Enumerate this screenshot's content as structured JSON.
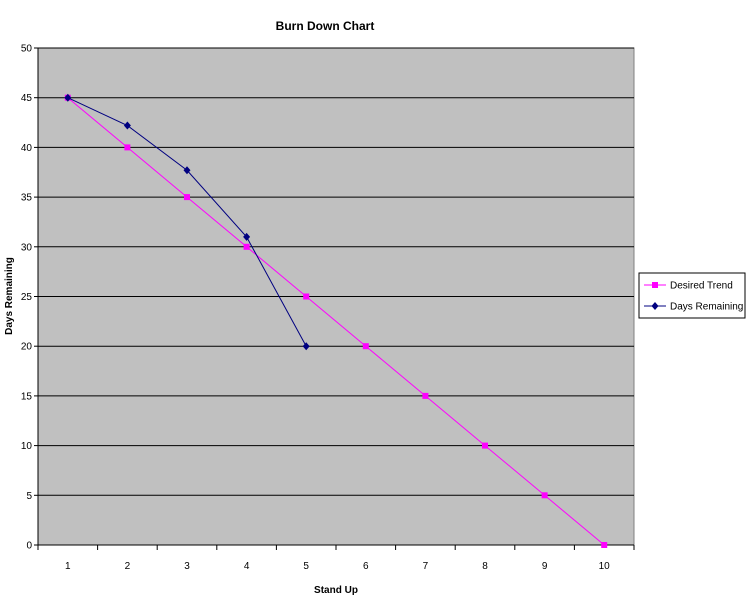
{
  "chart_data": {
    "type": "line",
    "title": "Burn Down Chart",
    "xlabel": "Stand Up",
    "ylabel": "Days Remaining",
    "x": [
      1,
      2,
      3,
      4,
      5,
      6,
      7,
      8,
      9,
      10
    ],
    "ylim": [
      0,
      50
    ],
    "yticks": [
      0,
      5,
      10,
      15,
      20,
      25,
      30,
      35,
      40,
      45,
      50
    ],
    "grid": true,
    "legend_position": "right",
    "plot_background": "#c0c0c0",
    "series": [
      {
        "name": "Desired Trend",
        "color": "#ff00ff",
        "marker": "square",
        "x": [
          1,
          2,
          3,
          4,
          5,
          6,
          7,
          8,
          9,
          10
        ],
        "y": [
          45,
          40,
          35,
          30,
          25,
          20,
          15,
          10,
          5,
          0
        ]
      },
      {
        "name": "Days Remaining",
        "color": "#000080",
        "marker": "diamond",
        "x": [
          1,
          2,
          3,
          4,
          5
        ],
        "y": [
          45,
          42.2,
          37.7,
          31,
          20
        ]
      }
    ]
  }
}
